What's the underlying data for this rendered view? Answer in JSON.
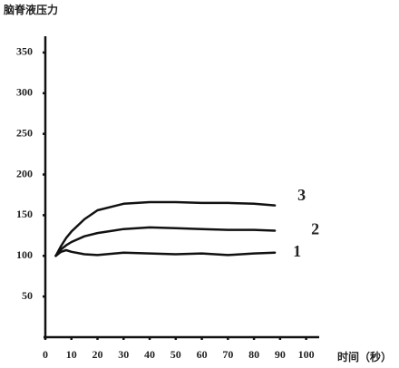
{
  "chart_data": {
    "type": "line",
    "y_label": "脑脊液压力",
    "x_label": "时间（秒）",
    "x": [
      4,
      6,
      8,
      10,
      15,
      20,
      30,
      40,
      50,
      60,
      70,
      80,
      88
    ],
    "series": [
      {
        "name": "1",
        "color": "#111111",
        "values": [
          100,
          105,
          107,
          105,
          102,
          101,
          104,
          103,
          102,
          103,
          101,
          103,
          104
        ]
      },
      {
        "name": "2",
        "color": "#111111",
        "values": [
          100,
          108,
          113,
          117,
          124,
          128,
          133,
          135,
          134,
          133,
          132,
          132,
          131
        ]
      },
      {
        "name": "3",
        "color": "#111111",
        "values": [
          100,
          112,
          122,
          130,
          145,
          156,
          164,
          166,
          166,
          165,
          165,
          164,
          162
        ]
      }
    ],
    "xlim": [
      0,
      105
    ],
    "ylim": [
      0,
      370
    ],
    "xticks": [
      0,
      10,
      20,
      30,
      40,
      50,
      60,
      70,
      80,
      90,
      100
    ],
    "yticks": [
      50,
      100,
      150,
      200,
      250,
      300,
      350
    ],
    "grid": false
  }
}
